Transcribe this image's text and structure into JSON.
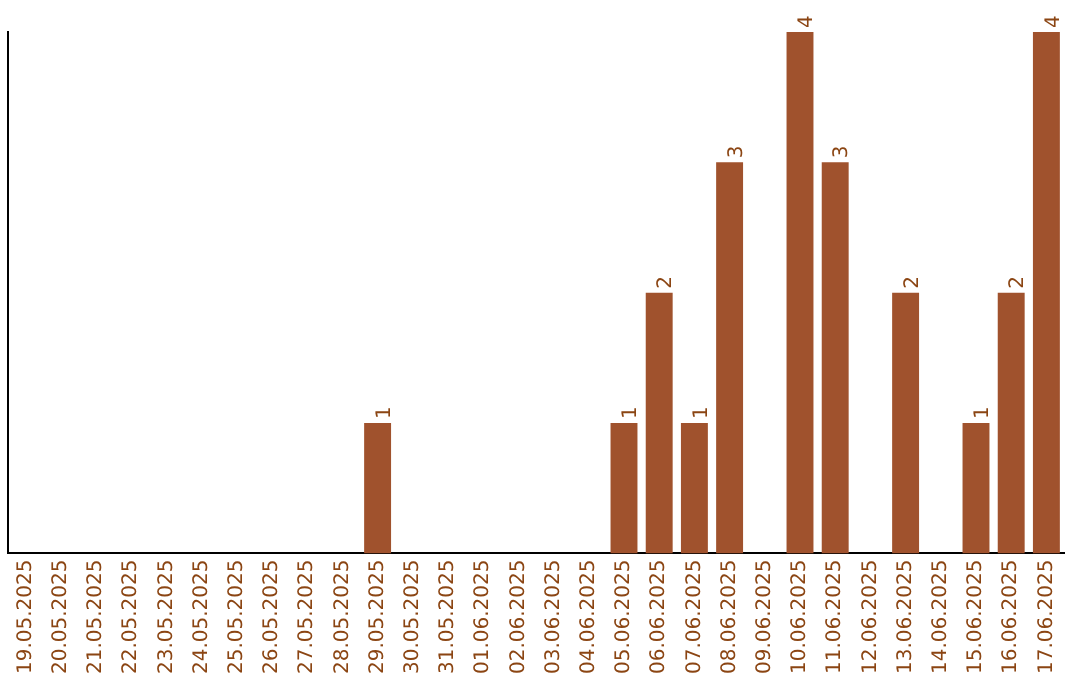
{
  "chart_data": {
    "type": "bar",
    "categories": [
      "19.05.2025",
      "20.05.2025",
      "21.05.2025",
      "22.05.2025",
      "23.05.2025",
      "24.05.2025",
      "25.05.2025",
      "26.05.2025",
      "27.05.2025",
      "28.05.2025",
      "29.05.2025",
      "30.05.2025",
      "31.05.2025",
      "01.06.2025",
      "02.06.2025",
      "03.06.2025",
      "04.06.2025",
      "05.06.2025",
      "06.06.2025",
      "07.06.2025",
      "08.06.2025",
      "09.06.2025",
      "10.06.2025",
      "11.06.2025",
      "12.06.2025",
      "13.06.2025",
      "14.06.2025",
      "15.06.2025",
      "16.06.2025",
      "17.06.2025"
    ],
    "values": [
      0,
      0,
      0,
      0,
      0,
      0,
      0,
      0,
      0,
      0,
      1,
      0,
      0,
      0,
      0,
      0,
      0,
      1,
      2,
      1,
      3,
      0,
      4,
      3,
      0,
      2,
      0,
      1,
      2,
      4
    ],
    "value_labels": [
      null,
      null,
      null,
      null,
      null,
      null,
      null,
      null,
      null,
      null,
      "1",
      null,
      null,
      null,
      null,
      null,
      null,
      "1",
      "2",
      "1",
      "3",
      null,
      "4",
      "3",
      null,
      "2",
      null,
      "1",
      "2",
      "4"
    ],
    "color": "#a0522d",
    "ylim": [
      0,
      4
    ],
    "tick_labels": "x",
    "grid": false,
    "legend": false
  }
}
